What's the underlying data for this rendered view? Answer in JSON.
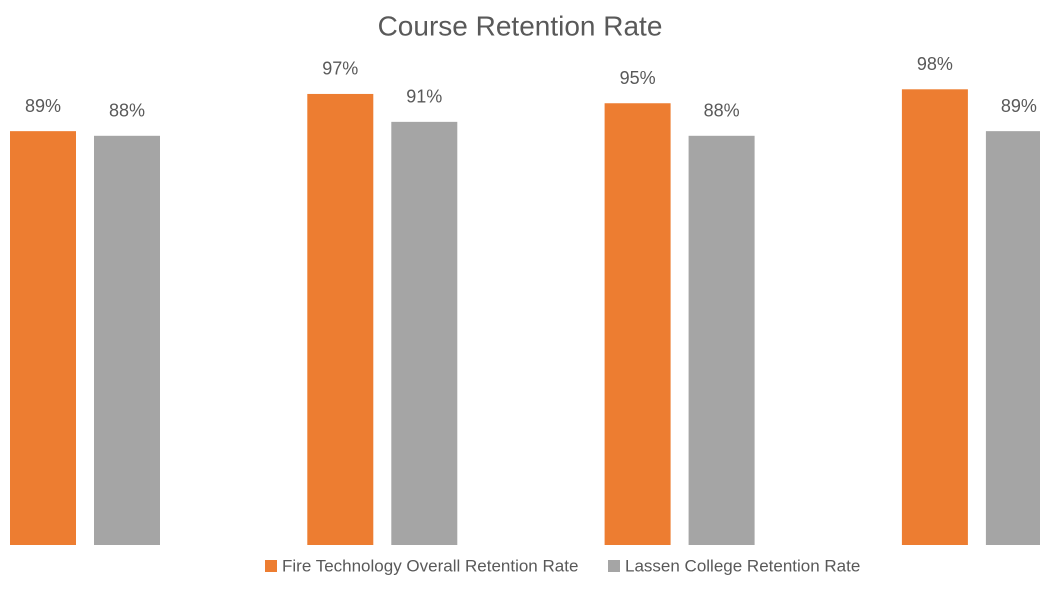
{
  "chart_data": {
    "type": "bar",
    "title": "Course Retention Rate",
    "categories": [
      null,
      null,
      null,
      null
    ],
    "series": [
      {
        "name": "Fire Technology Overall Retention Rate",
        "color": "#ed7d31",
        "values": [
          89,
          97,
          95,
          98
        ],
        "value_labels": [
          "89%",
          "97%",
          "95%",
          "98%"
        ]
      },
      {
        "name": "Lassen College Retention Rate",
        "color": "#a5a5a5",
        "values": [
          88,
          91,
          88,
          89
        ],
        "value_labels": [
          "88%",
          "91%",
          "88%",
          "89%"
        ]
      }
    ],
    "legend": "bottom"
  }
}
